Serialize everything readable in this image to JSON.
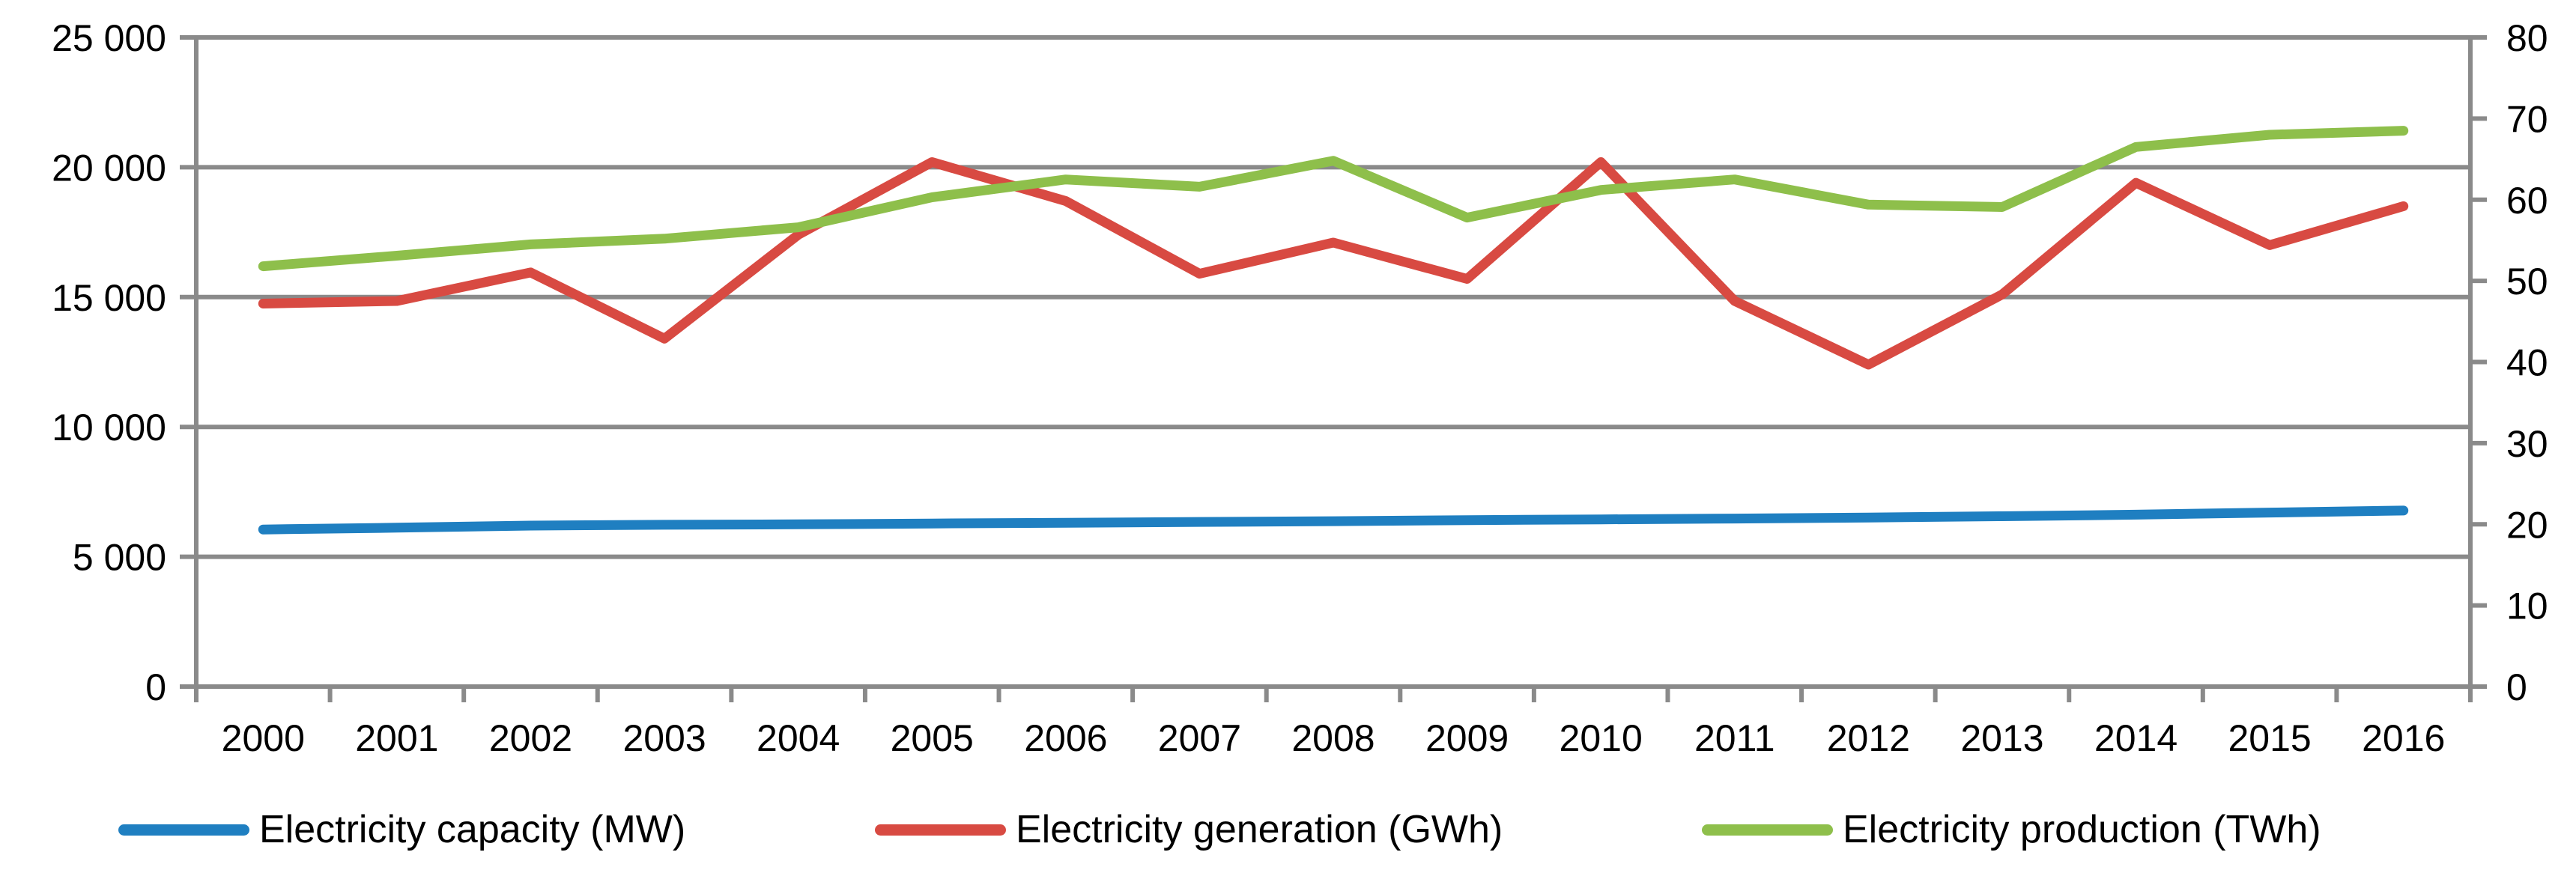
{
  "chart_data": {
    "type": "line",
    "title": "",
    "x_categories": [
      "2000",
      "2001",
      "2002",
      "2003",
      "2004",
      "2005",
      "2006",
      "2007",
      "2008",
      "2009",
      "2010",
      "2011",
      "2012",
      "2013",
      "2014",
      "2015",
      "2016"
    ],
    "series": [
      {
        "name": "Electricity capacity (MW)",
        "axis": "left",
        "color": "#1F7FC1",
        "values": [
          6050,
          6120,
          6200,
          6230,
          6250,
          6280,
          6310,
          6340,
          6370,
          6410,
          6440,
          6470,
          6510,
          6560,
          6620,
          6700,
          6780
        ]
      },
      {
        "name": "Electricity generation (GWh)",
        "axis": "left",
        "color": "#D84A42",
        "values": [
          14750,
          14850,
          15950,
          13400,
          17400,
          20200,
          18700,
          15900,
          17100,
          15700,
          20200,
          14850,
          12400,
          15100,
          19400,
          17000,
          18500
        ]
      },
      {
        "name": "Electricity production (TWh)",
        "axis": "right",
        "color": "#8EBF4B",
        "values": [
          51.8,
          53.1,
          54.5,
          55.2,
          56.6,
          60.3,
          62.5,
          61.6,
          64.8,
          57.8,
          61.2,
          62.5,
          59.4,
          59.1,
          66.5,
          68.0,
          68.5
        ]
      }
    ],
    "left_axis": {
      "range": [
        0,
        25000
      ],
      "tick_interval": 5000,
      "tick_labels_top_to_bottom": [
        "25 000",
        "20 000",
        "15 000",
        "10 000",
        "5 000",
        "0"
      ]
    },
    "right_axis": {
      "range": [
        0,
        80
      ],
      "tick_interval": 10,
      "tick_labels_top_to_bottom": [
        "80",
        "70",
        "60",
        "50",
        "40",
        "30",
        "20",
        "10",
        "0"
      ]
    },
    "grid": "horizontal",
    "legend_position": "bottom",
    "axis_color": "#8A8A8A",
    "text_color": "#000000",
    "background": "#FFFFFF"
  },
  "legend": {
    "items": [
      {
        "label": "Electricity capacity (MW)"
      },
      {
        "label": "Electricity generation (GWh)"
      },
      {
        "label": "Electricity production (TWh)"
      }
    ]
  }
}
